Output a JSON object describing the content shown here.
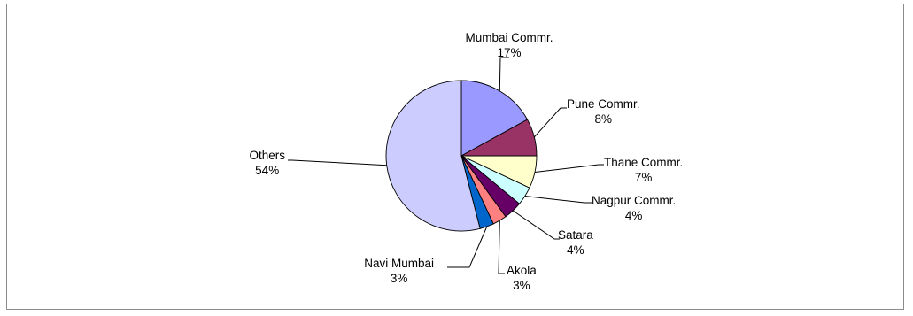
{
  "chart_data": {
    "type": "pie",
    "title": "",
    "start_angle_deg": 0,
    "direction": "clockwise",
    "slices": [
      {
        "label": "Mumbai Commr.",
        "value": 17,
        "value_label": "17%",
        "color": "#9999ff"
      },
      {
        "label": "Pune Commr.",
        "value": 8,
        "value_label": "8%",
        "color": "#993366"
      },
      {
        "label": "Thane Commr.",
        "value": 7,
        "value_label": "7%",
        "color": "#ffffcc"
      },
      {
        "label": "Nagpur Commr.",
        "value": 4,
        "value_label": "4%",
        "color": "#ccffff"
      },
      {
        "label": "Satara",
        "value": 4,
        "value_label": "4%",
        "color": "#660066"
      },
      {
        "label": "Akola",
        "value": 3,
        "value_label": "3%",
        "color": "#ff8080"
      },
      {
        "label": "Navi Mumbai",
        "value": 3,
        "value_label": "3%",
        "color": "#0066cc"
      },
      {
        "label": "Others",
        "value": 54,
        "value_label": "54%",
        "color": "#ccccff"
      }
    ],
    "legend": "none",
    "label_style": "callout lines with category and percentage"
  }
}
